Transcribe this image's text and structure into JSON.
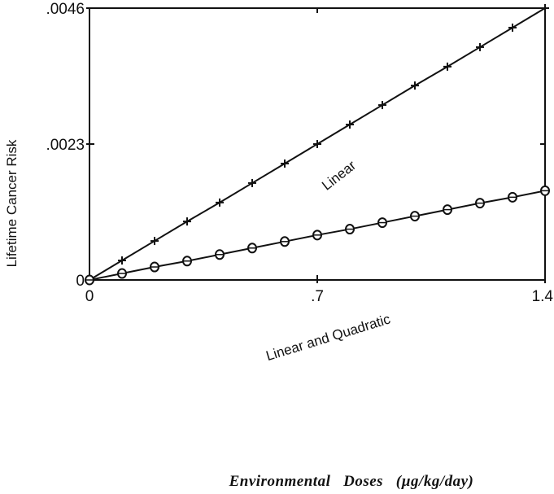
{
  "chart_data": {
    "type": "line",
    "xlabel": "Environmental   Doses   (µg/kg/day)",
    "ylabel": "Lifetime Cancer Risk",
    "xlim": [
      0,
      1.4
    ],
    "ylim": [
      0,
      0.0046
    ],
    "x_ticks": [
      {
        "value": 0,
        "label": "0"
      },
      {
        "value": 0.7,
        "label": ".7"
      },
      {
        "value": 1.4,
        "label": "1.4"
      }
    ],
    "y_ticks": [
      {
        "value": 0,
        "label": "0"
      },
      {
        "value": 0.0023,
        "label": ".0023"
      },
      {
        "value": 0.0046,
        "label": ".0046"
      }
    ],
    "grid": false,
    "legend": "none",
    "series": [
      {
        "name": "Linear",
        "marker": "plus",
        "x": [
          0,
          0.1,
          0.2,
          0.3,
          0.4,
          0.5,
          0.6,
          0.7,
          0.8,
          0.9,
          1.0,
          1.1,
          1.2,
          1.3,
          1.4
        ],
        "y": [
          0,
          0.00033,
          0.00066,
          0.00099,
          0.00131,
          0.00164,
          0.00197,
          0.0023,
          0.00263,
          0.00296,
          0.00329,
          0.00361,
          0.00394,
          0.00427,
          0.0046
        ]
      },
      {
        "name": "Linear and Quadratic",
        "marker": "circle",
        "x": [
          0,
          0.1,
          0.2,
          0.3,
          0.4,
          0.5,
          0.6,
          0.7,
          0.8,
          0.9,
          1.0,
          1.1,
          1.2,
          1.3,
          1.4
        ],
        "y": [
          0,
          0.00011,
          0.00022,
          0.00032,
          0.00043,
          0.00054,
          0.00065,
          0.00076,
          0.00086,
          0.00097,
          0.00108,
          0.00119,
          0.0013,
          0.0014,
          0.00151
        ]
      }
    ]
  }
}
